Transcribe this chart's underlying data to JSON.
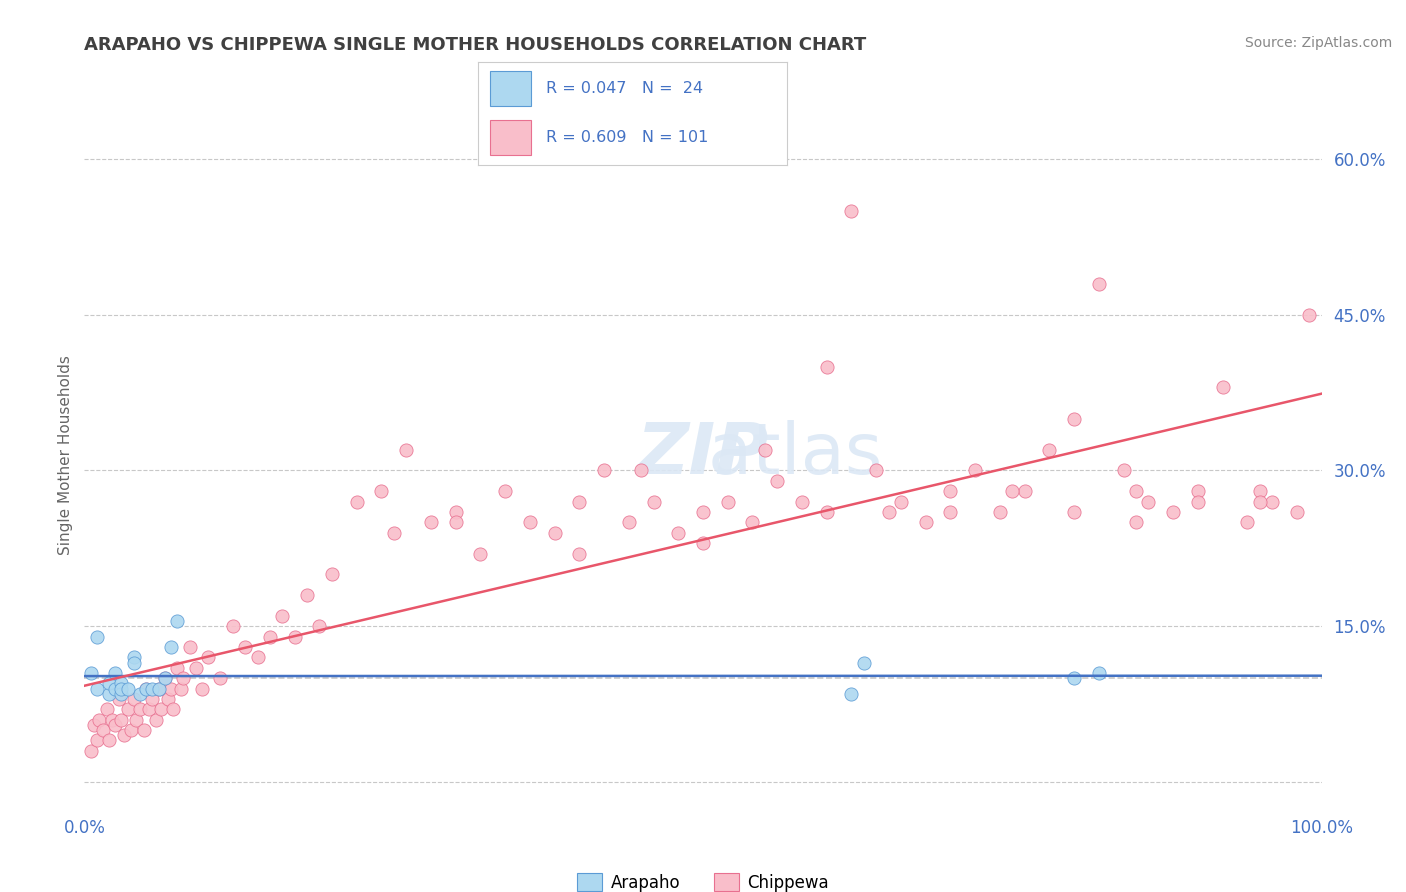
{
  "title": "ARAPAHO VS CHIPPEWA SINGLE MOTHER HOUSEHOLDS CORRELATION CHART",
  "source": "Source: ZipAtlas.com",
  "ylabel": "Single Mother Households",
  "xlim": [
    0,
    1
  ],
  "ylim": [
    -0.02,
    0.65
  ],
  "yticks": [
    0.0,
    0.15,
    0.3,
    0.45,
    0.6
  ],
  "ytick_labels": [
    "",
    "15.0%",
    "30.0%",
    "45.0%",
    "60.0%"
  ],
  "xtick_labels": [
    "0.0%",
    "100.0%"
  ],
  "watermark": "ZIPatlas",
  "legend_line1": "R = 0.047   N =  24",
  "legend_line2": "R = 0.609   N = 101",
  "arapaho_color": "#ADD8F0",
  "chippewa_color": "#F9BECA",
  "arapaho_edge_color": "#5B9BD5",
  "chippewa_edge_color": "#E87090",
  "arapaho_line_color": "#4472C4",
  "chippewa_line_color": "#E8566A",
  "background_color": "#FFFFFF",
  "grid_color": "#C8C8C8",
  "title_color": "#404040",
  "label_color": "#4472C4",
  "source_color": "#888888",
  "dashed_line_color": "#BBBBBB",
  "watermark_color": "#DCE8F5",
  "arapaho_x": [
    0.005,
    0.01,
    0.01,
    0.02,
    0.02,
    0.025,
    0.025,
    0.03,
    0.03,
    0.03,
    0.035,
    0.04,
    0.04,
    0.045,
    0.05,
    0.055,
    0.06,
    0.065,
    0.07,
    0.075,
    0.62,
    0.63,
    0.8,
    0.82
  ],
  "arapaho_y": [
    0.105,
    0.09,
    0.14,
    0.085,
    0.095,
    0.105,
    0.09,
    0.095,
    0.085,
    0.09,
    0.09,
    0.12,
    0.115,
    0.085,
    0.09,
    0.09,
    0.09,
    0.1,
    0.13,
    0.155,
    0.085,
    0.115,
    0.1,
    0.105
  ],
  "chippewa_x": [
    0.005,
    0.008,
    0.01,
    0.012,
    0.015,
    0.018,
    0.02,
    0.022,
    0.025,
    0.028,
    0.03,
    0.032,
    0.035,
    0.038,
    0.04,
    0.042,
    0.045,
    0.048,
    0.05,
    0.052,
    0.055,
    0.058,
    0.06,
    0.062,
    0.065,
    0.068,
    0.07,
    0.072,
    0.075,
    0.078,
    0.08,
    0.085,
    0.09,
    0.095,
    0.1,
    0.11,
    0.12,
    0.13,
    0.14,
    0.15,
    0.16,
    0.17,
    0.18,
    0.19,
    0.2,
    0.22,
    0.24,
    0.26,
    0.28,
    0.3,
    0.32,
    0.34,
    0.36,
    0.38,
    0.4,
    0.42,
    0.44,
    0.46,
    0.48,
    0.5,
    0.52,
    0.54,
    0.56,
    0.58,
    0.6,
    0.62,
    0.64,
    0.66,
    0.68,
    0.7,
    0.72,
    0.74,
    0.76,
    0.78,
    0.8,
    0.82,
    0.84,
    0.86,
    0.88,
    0.9,
    0.92,
    0.94,
    0.96,
    0.98,
    0.99,
    0.6,
    0.3,
    0.25,
    0.5,
    0.4,
    0.7,
    0.8,
    0.85,
    0.9,
    0.95,
    0.45,
    0.55,
    0.65,
    0.75,
    0.85,
    0.95
  ],
  "chippewa_y": [
    0.03,
    0.055,
    0.04,
    0.06,
    0.05,
    0.07,
    0.04,
    0.06,
    0.055,
    0.08,
    0.06,
    0.045,
    0.07,
    0.05,
    0.08,
    0.06,
    0.07,
    0.05,
    0.09,
    0.07,
    0.08,
    0.06,
    0.09,
    0.07,
    0.1,
    0.08,
    0.09,
    0.07,
    0.11,
    0.09,
    0.1,
    0.13,
    0.11,
    0.09,
    0.12,
    0.1,
    0.15,
    0.13,
    0.12,
    0.14,
    0.16,
    0.14,
    0.18,
    0.15,
    0.2,
    0.27,
    0.28,
    0.32,
    0.25,
    0.26,
    0.22,
    0.28,
    0.25,
    0.24,
    0.22,
    0.3,
    0.25,
    0.27,
    0.24,
    0.26,
    0.27,
    0.25,
    0.29,
    0.27,
    0.26,
    0.55,
    0.3,
    0.27,
    0.25,
    0.28,
    0.3,
    0.26,
    0.28,
    0.32,
    0.26,
    0.48,
    0.3,
    0.27,
    0.26,
    0.28,
    0.38,
    0.25,
    0.27,
    0.26,
    0.45,
    0.4,
    0.25,
    0.24,
    0.23,
    0.27,
    0.26,
    0.35,
    0.28,
    0.27,
    0.28,
    0.3,
    0.32,
    0.26,
    0.28,
    0.25,
    0.27
  ]
}
